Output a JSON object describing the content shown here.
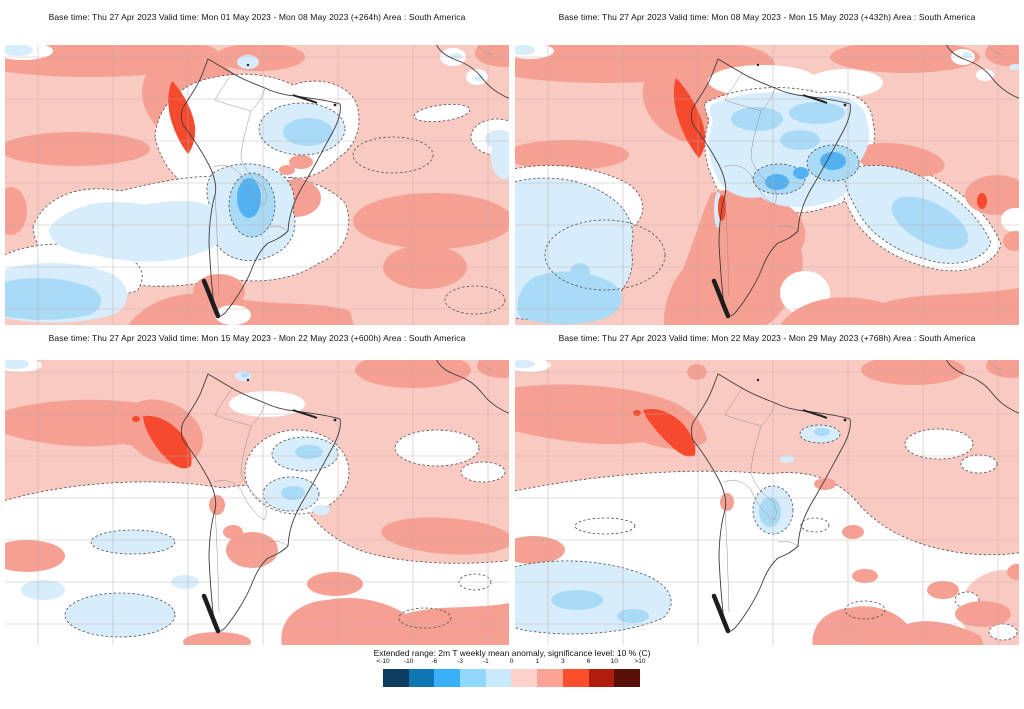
{
  "panels": [
    {
      "lead": "+264h",
      "title": "Base time: Thu 27 Apr 2023 Valid time: Mon 01 May 2023 - Mon 08 May 2023 (+264h) Area : South America"
    },
    {
      "lead": "+432h",
      "title": "Base time: Thu 27 Apr 2023 Valid time: Mon 08 May 2023 - Mon 15 May 2023 (+432h) Area : South America"
    },
    {
      "lead": "+600h",
      "title": "Base time: Thu 27 Apr 2023 Valid time: Mon 15 May 2023 - Mon 22 May 2023 (+600h) Area : South America"
    },
    {
      "lead": "+768h",
      "title": "Base time: Thu 27 Apr 2023 Valid time: Mon 22 May 2023 - Mon 29 May 2023 (+768h) Area : South America"
    }
  ],
  "legend": {
    "title": "Extended range: 2m T weekly mean anomaly, significance level: 10 % (C)",
    "ticks": [
      "<-10",
      "-10",
      "-6",
      "-3",
      "-1",
      "0",
      "1",
      "3",
      "6",
      "10",
      ">10"
    ],
    "colors": [
      "#0d3c5f",
      "#0f76b2",
      "#38b0f8",
      "#92d8fb",
      "#c9e9fd",
      "#fdd2ca",
      "#fda393",
      "#fb4f2c",
      "#b21c0c",
      "#591008"
    ]
  },
  "map_colors": {
    "anomaly_0_1": "#f9cac2",
    "anomaly_1_3": "#f5a093",
    "anomaly_3_6": "#f54a2e",
    "not_significant": "#ffffff",
    "anomaly_m1_0": "#d7edfb",
    "anomaly_m3_m1": "#a9daf6",
    "anomaly_m6_m3": "#52b1f0"
  }
}
